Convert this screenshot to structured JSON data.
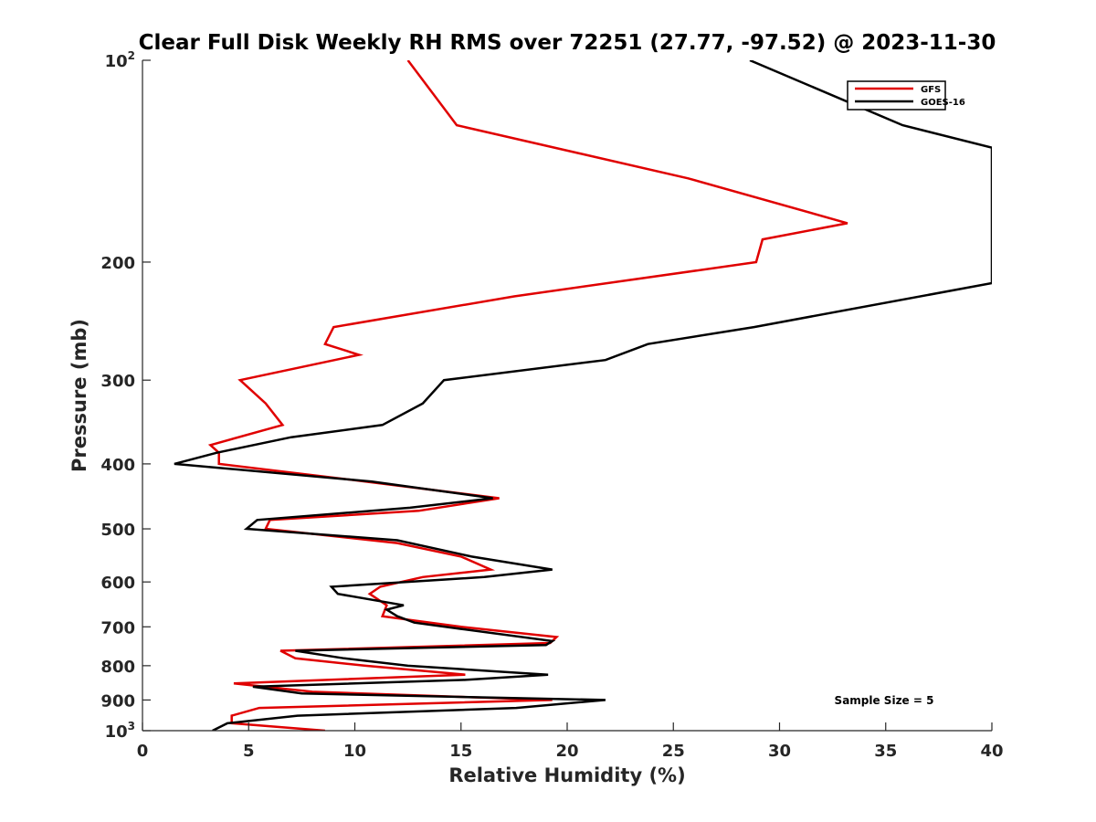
{
  "chart_data": {
    "type": "line",
    "title": "Clear Full Disk Weekly RH RMS over 72251 (27.77, -97.52) @ 2023-11-30",
    "xlabel": "Relative Humidity (%)",
    "ylabel": "Pressure (mb)",
    "xlim": [
      0,
      40
    ],
    "ylim": [
      100,
      1000
    ],
    "yscale": "log",
    "y_reversed": true,
    "x_ticks": [
      0,
      5,
      10,
      15,
      20,
      25,
      30,
      35,
      40
    ],
    "x_tick_labels": [
      "0",
      "5",
      "10",
      "15",
      "20",
      "25",
      "30",
      "35",
      "40"
    ],
    "y_ticks": [
      100,
      200,
      300,
      400,
      500,
      600,
      700,
      800,
      900,
      1000
    ],
    "y_tick_labels": [
      {
        "base": "10",
        "exp": "2"
      },
      {
        "base": "200",
        "exp": ""
      },
      {
        "base": "300",
        "exp": ""
      },
      {
        "base": "400",
        "exp": ""
      },
      {
        "base": "500",
        "exp": ""
      },
      {
        "base": "600",
        "exp": ""
      },
      {
        "base": "700",
        "exp": ""
      },
      {
        "base": "800",
        "exp": ""
      },
      {
        "base": "900",
        "exp": ""
      },
      {
        "base": "10",
        "exp": "3"
      }
    ],
    "grid": false,
    "legend_position": "top-right",
    "annotation": "Sample Size = 5",
    "series": [
      {
        "name": "GFS",
        "color": "#e00000",
        "points": [
          [
            12.5,
            100
          ],
          [
            14.8,
            125
          ],
          [
            25.7,
            150
          ],
          [
            33.2,
            175
          ],
          [
            29.2,
            185
          ],
          [
            28.9,
            200
          ],
          [
            17.5,
            225
          ],
          [
            9.0,
            250
          ],
          [
            8.6,
            265
          ],
          [
            10.2,
            275
          ],
          [
            4.6,
            300
          ],
          [
            5.8,
            325
          ],
          [
            6.6,
            350
          ],
          [
            3.2,
            375
          ],
          [
            3.6,
            385
          ],
          [
            3.6,
            400
          ],
          [
            10.5,
            425
          ],
          [
            16.8,
            450
          ],
          [
            13.0,
            470
          ],
          [
            6.0,
            485
          ],
          [
            5.8,
            500
          ],
          [
            12.0,
            525
          ],
          [
            15.0,
            550
          ],
          [
            16.4,
            575
          ],
          [
            13.2,
            590
          ],
          [
            11.2,
            610
          ],
          [
            10.7,
            625
          ],
          [
            11.5,
            650
          ],
          [
            11.3,
            675
          ],
          [
            15.0,
            700
          ],
          [
            19.5,
            725
          ],
          [
            19.2,
            740
          ],
          [
            6.5,
            760
          ],
          [
            7.2,
            780
          ],
          [
            10.5,
            800
          ],
          [
            15.2,
            825
          ],
          [
            4.3,
            850
          ],
          [
            8.0,
            875
          ],
          [
            19.3,
            900
          ],
          [
            5.5,
            925
          ],
          [
            4.2,
            950
          ],
          [
            4.2,
            975
          ],
          [
            8.6,
            1000
          ]
        ]
      },
      {
        "name": "GOES-16",
        "color": "#000000",
        "points": [
          [
            28.6,
            100
          ],
          [
            35.8,
            125
          ],
          [
            40.0,
            135
          ],
          [
            40.0,
            215
          ],
          [
            28.8,
            250
          ],
          [
            23.8,
            265
          ],
          [
            21.8,
            280
          ],
          [
            14.2,
            300
          ],
          [
            13.2,
            325
          ],
          [
            11.3,
            350
          ],
          [
            7.0,
            365
          ],
          [
            3.5,
            385
          ],
          [
            1.5,
            400
          ],
          [
            10.8,
            425
          ],
          [
            16.5,
            450
          ],
          [
            12.6,
            465
          ],
          [
            5.4,
            485
          ],
          [
            4.9,
            500
          ],
          [
            12.0,
            520
          ],
          [
            15.5,
            550
          ],
          [
            19.3,
            575
          ],
          [
            16.1,
            590
          ],
          [
            8.9,
            610
          ],
          [
            9.2,
            625
          ],
          [
            12.3,
            650
          ],
          [
            11.5,
            660
          ],
          [
            12.0,
            675
          ],
          [
            12.8,
            690
          ],
          [
            15.0,
            705
          ],
          [
            19.3,
            735
          ],
          [
            19.0,
            745
          ],
          [
            7.2,
            760
          ],
          [
            9.5,
            780
          ],
          [
            12.5,
            800
          ],
          [
            19.1,
            825
          ],
          [
            15.2,
            840
          ],
          [
            5.2,
            860
          ],
          [
            7.5,
            880
          ],
          [
            21.8,
            900
          ],
          [
            17.6,
            925
          ],
          [
            7.3,
            950
          ],
          [
            4.0,
            975
          ],
          [
            3.3,
            1000
          ]
        ]
      }
    ]
  }
}
